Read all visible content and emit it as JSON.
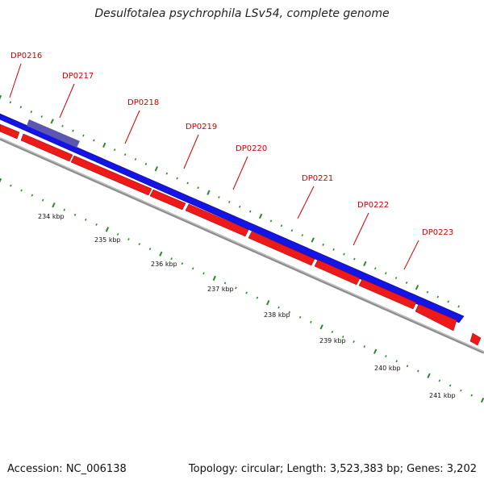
{
  "title_italic": "Desulfotalea psychrophila LSv54",
  "title_rest": ", complete genome",
  "accession": "Accession: NC_006138",
  "summary": "Topology: circular; Length: 3,523,383 bp; Genes: 3,202",
  "colors": {
    "forward_gene": "#1414e6",
    "reverse_gene": "#ee1a1a",
    "highlight_gene": "#5b56b0",
    "backbone": "#8c8c8c",
    "tick": "#2a8a2a",
    "label": "#d00000"
  },
  "gene_labels": [
    "DP0216",
    "DP0217",
    "DP0218",
    "DP0219",
    "DP0220",
    "DP0221",
    "DP0222",
    "DP0223"
  ],
  "kbp_ticks": [
    "234 kbp",
    "235 kbp",
    "236 kbp",
    "237 kbp",
    "238 kbp",
    "239 kbp",
    "240 kbp",
    "241 kbp"
  ]
}
